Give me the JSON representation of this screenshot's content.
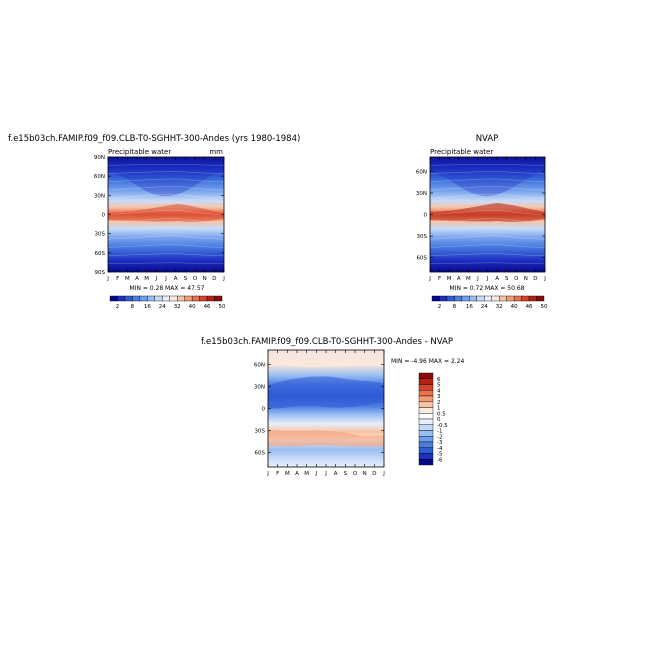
{
  "figure": {
    "panel_a_title": "f.e15b03ch.FAMIP.f09_f09.CLB-T0-SGHHT-300-Andes (yrs 1980-1984)",
    "panel_b_title": "NVAP",
    "panel_c_title": "f.e15b03ch.FAMIP.f09_f09.CLB-T0-SGHHT-300-Andes - NVAP"
  },
  "chart_data": [
    {
      "type": "heatmap",
      "subtitle": "Precipitable water",
      "units": "mm",
      "x_ticks": [
        "J",
        "F",
        "M",
        "A",
        "M",
        "J",
        "J",
        "A",
        "S",
        "O",
        "N",
        "D",
        "J"
      ],
      "y_ticks": [
        "90N",
        "60N",
        "30N",
        "0",
        "30S",
        "60S",
        "90S"
      ],
      "y_tick_values": [
        90,
        60,
        30,
        0,
        -30,
        -60,
        -90
      ],
      "ylim": [
        -90,
        90
      ],
      "min_label": "MIN =  0.28  MAX =  47.57",
      "min": 0.28,
      "max": 47.57,
      "colorbar_labels": [
        "2",
        "8",
        "16",
        "24",
        "32",
        "40",
        "46",
        "50"
      ],
      "colorbar_colors": [
        "#08088c",
        "#1b2fc0",
        "#2f5ad6",
        "#4a7ee2",
        "#6f9eec",
        "#98bdf3",
        "#c2d8f8",
        "#e8eefb",
        "#fbe8dc",
        "#f8c4a6",
        "#f39c78",
        "#e8704c",
        "#d4432b",
        "#b52013",
        "#8c0a0a"
      ]
    },
    {
      "type": "heatmap",
      "subtitle": "Precipitable water",
      "units": "",
      "x_ticks": [
        "J",
        "F",
        "M",
        "A",
        "M",
        "J",
        "J",
        "A",
        "S",
        "O",
        "N",
        "D",
        "J"
      ],
      "y_ticks": [
        "60N",
        "30N",
        "0",
        "30S",
        "60S"
      ],
      "y_tick_values": [
        60,
        30,
        0,
        -30,
        -60
      ],
      "ylim": [
        -80,
        80
      ],
      "min_label": "MIN =  0.72  MAX =  50.68",
      "min": 0.72,
      "max": 50.68,
      "colorbar_labels": [
        "2",
        "8",
        "16",
        "24",
        "32",
        "40",
        "46",
        "50"
      ],
      "colorbar_colors": [
        "#08088c",
        "#1b2fc0",
        "#2f5ad6",
        "#4a7ee2",
        "#6f9eec",
        "#98bdf3",
        "#c2d8f8",
        "#e8eefb",
        "#fbe8dc",
        "#f8c4a6",
        "#f39c78",
        "#e8704c",
        "#d4432b",
        "#b52013",
        "#8c0a0a"
      ]
    },
    {
      "type": "heatmap",
      "subtitle": "",
      "units": "",
      "x_ticks": [
        "J",
        "F",
        "M",
        "A",
        "M",
        "J",
        "J",
        "A",
        "S",
        "O",
        "N",
        "D",
        "J"
      ],
      "y_ticks": [
        "60N",
        "30N",
        "0",
        "30S",
        "60S"
      ],
      "y_tick_values": [
        60,
        30,
        0,
        -30,
        -60
      ],
      "ylim": [
        -80,
        80
      ],
      "min_label": "MIN =  -4.96  MAX =   2.24",
      "min": -4.96,
      "max": 2.24,
      "colorbar_labels": [
        "6",
        "5",
        "4",
        "3",
        "2",
        "1",
        "0.5",
        "0",
        "-0.5",
        "-1",
        "-2",
        "-3",
        "-4",
        "-5",
        "-6"
      ],
      "colorbar_colors": [
        "#8c0a0a",
        "#b52013",
        "#d4432b",
        "#e8704c",
        "#f39c78",
        "#f8c4a6",
        "#fbe8dc",
        "#ffffff",
        "#e8eefb",
        "#c2d8f8",
        "#98bdf3",
        "#6f9eec",
        "#4a7ee2",
        "#2f5ad6",
        "#1b2fc0",
        "#08088c"
      ]
    }
  ]
}
